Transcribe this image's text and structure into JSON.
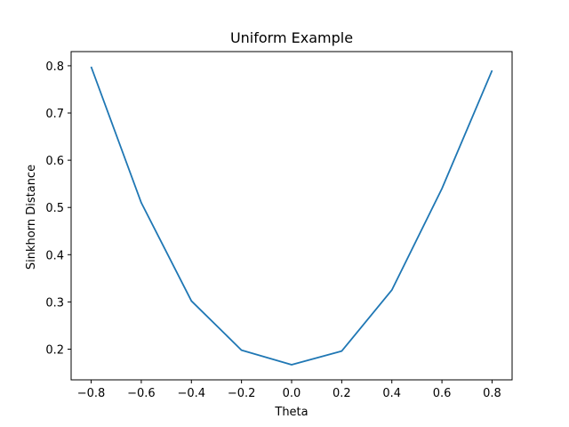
{
  "chart_data": {
    "type": "line",
    "title": "Uniform Example",
    "xlabel": "Theta",
    "ylabel": "Sinkhorn Distance",
    "xlim": [
      -0.88,
      0.88
    ],
    "ylim": [
      0.135,
      0.83
    ],
    "xticks": [
      -0.8,
      -0.6,
      -0.4,
      -0.2,
      0.0,
      0.2,
      0.4,
      0.6,
      0.8
    ],
    "xtick_labels": [
      "−0.8",
      "−0.6",
      "−0.4",
      "−0.2",
      "0.0",
      "0.2",
      "0.4",
      "0.6",
      "0.8"
    ],
    "yticks": [
      0.2,
      0.3,
      0.4,
      0.5,
      0.6,
      0.7,
      0.8
    ],
    "ytick_labels": [
      "0.2",
      "0.3",
      "0.4",
      "0.5",
      "0.6",
      "0.7",
      "0.8"
    ],
    "grid": false,
    "series": [
      {
        "color": "#1f77b4",
        "x": [
          -0.8,
          -0.6,
          -0.4,
          -0.2,
          0.0,
          0.2,
          0.4,
          0.6,
          0.8
        ],
        "y": [
          0.798,
          0.51,
          0.302,
          0.198,
          0.167,
          0.196,
          0.325,
          0.54,
          0.79
        ]
      }
    ]
  }
}
